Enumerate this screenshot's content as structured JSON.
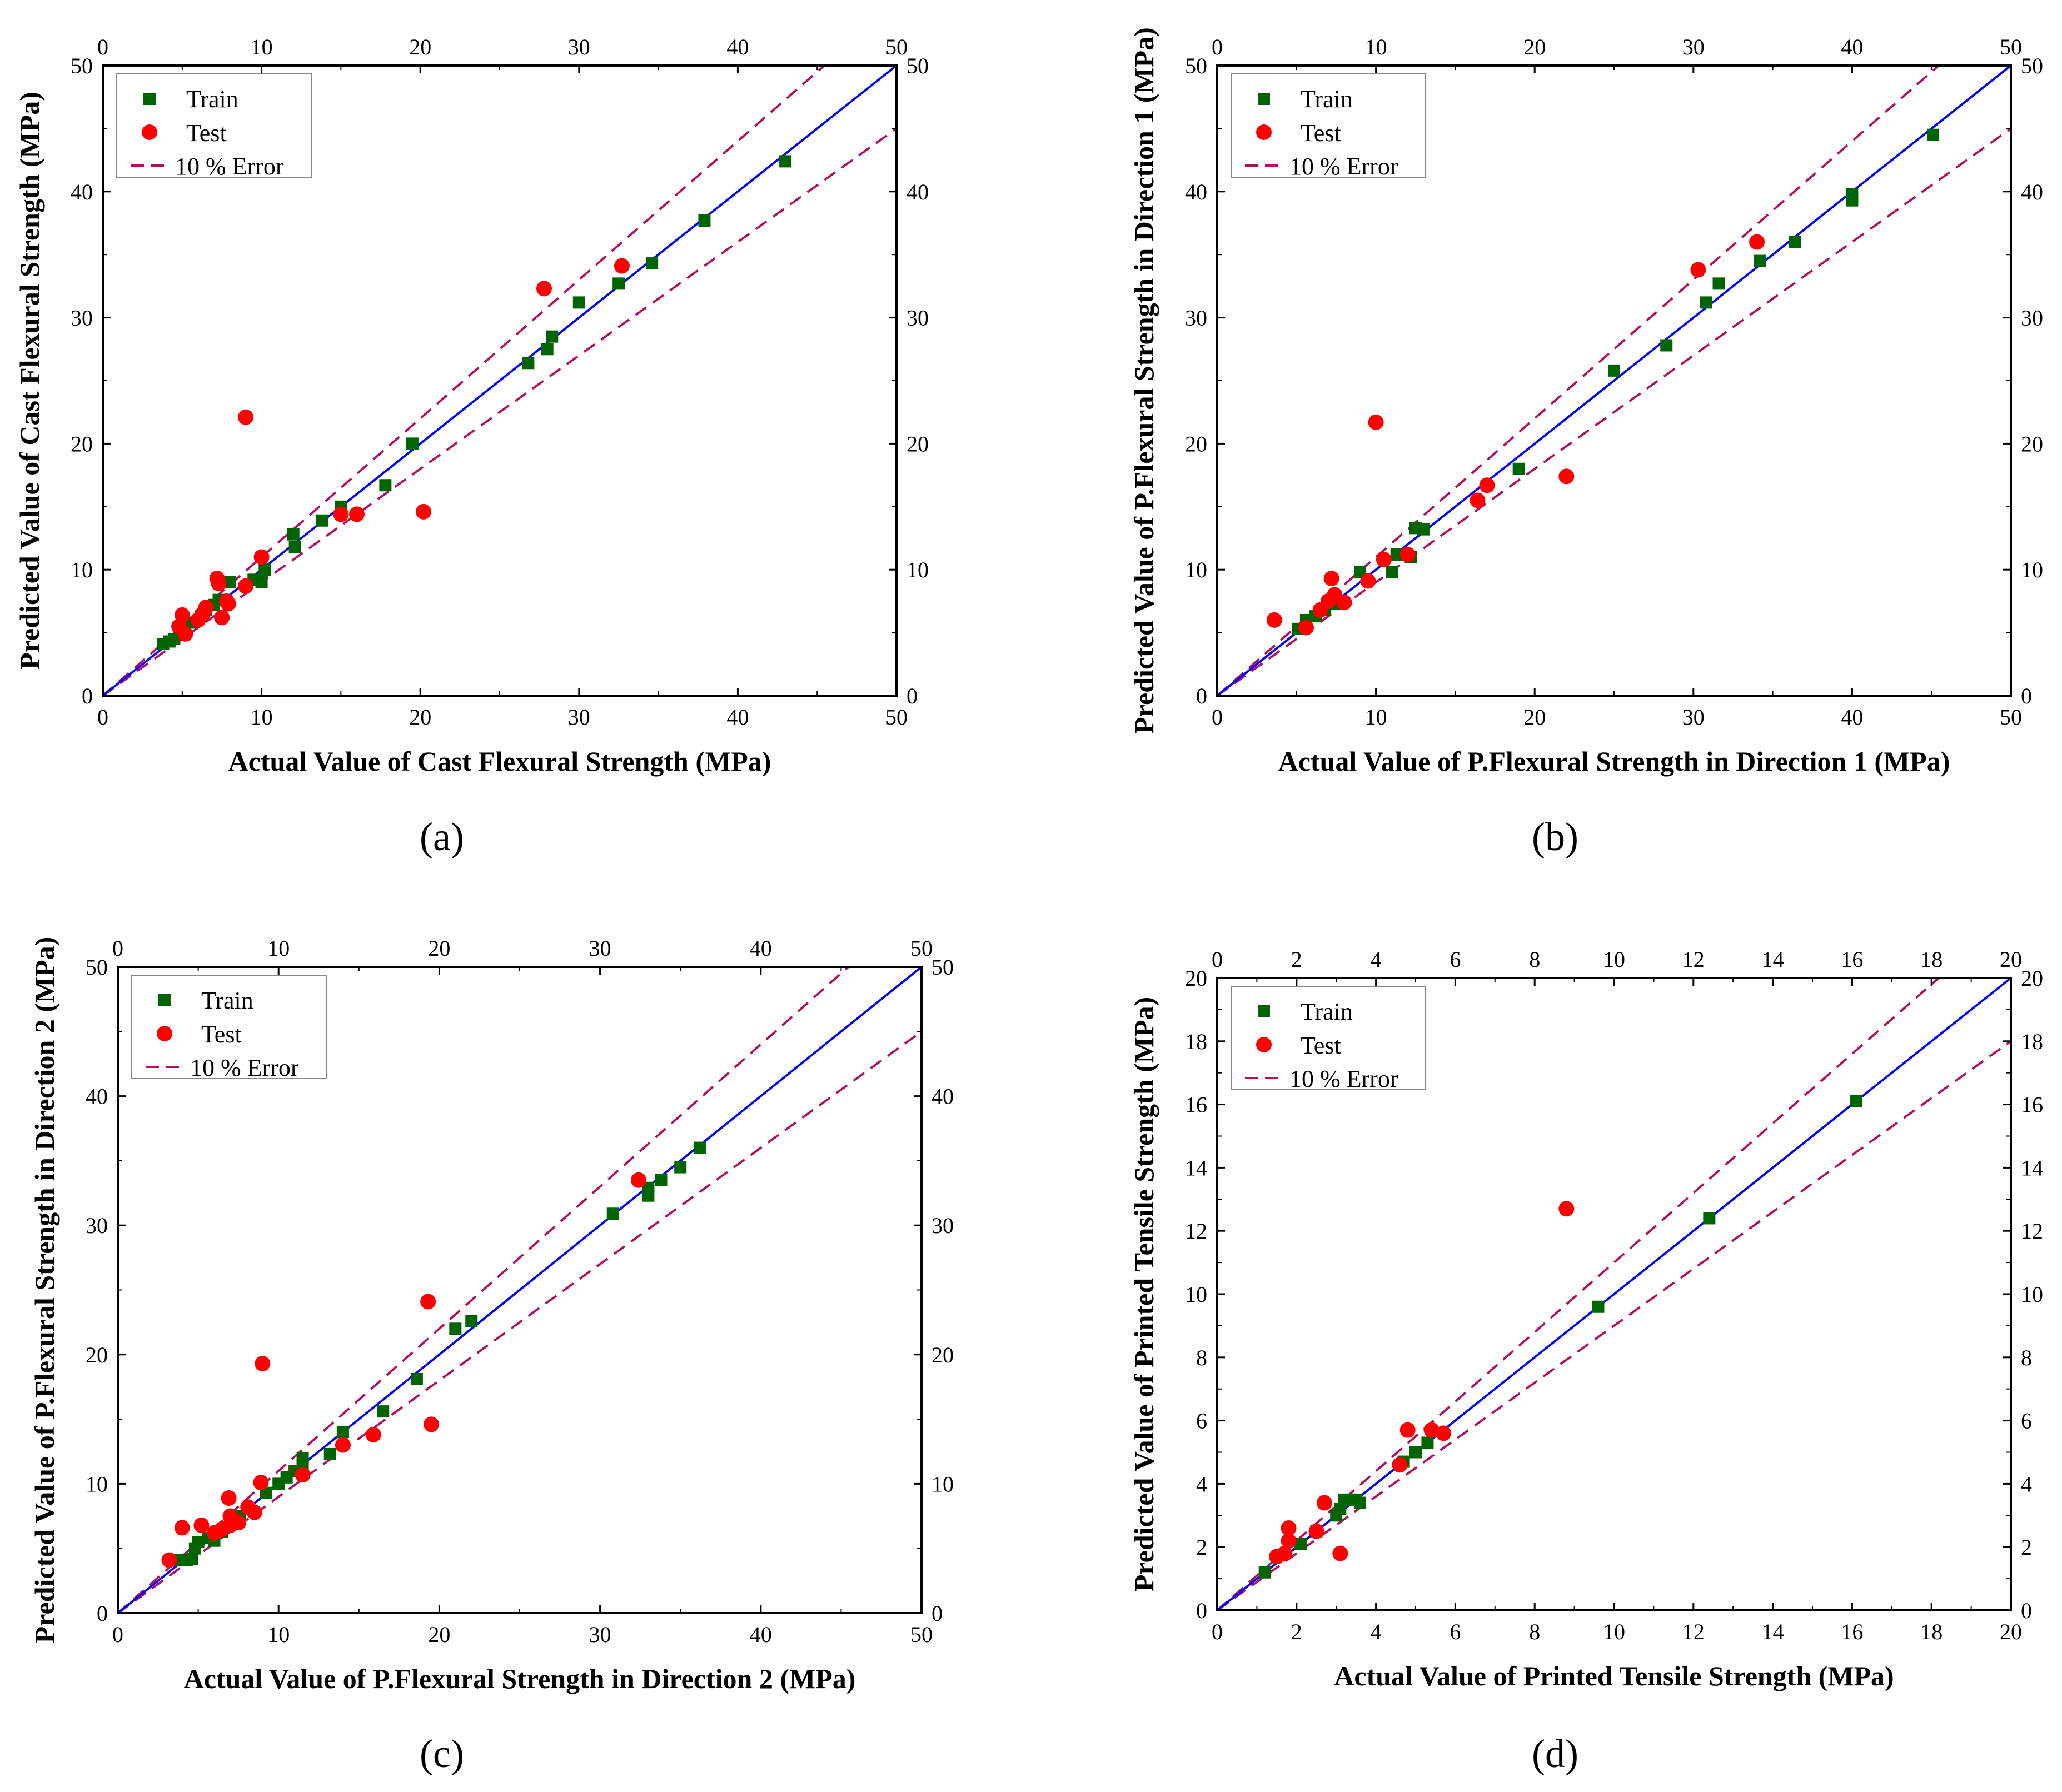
{
  "figure": {
    "legend_labels": {
      "train": "Train",
      "test": "Test",
      "error": "10 % Error"
    },
    "colors": {
      "train": "#006400",
      "test": "#ff0000",
      "ideal": "#0000ff",
      "error": "#b0105e",
      "axis": "#000000"
    }
  },
  "chart_data": [
    {
      "id": "a",
      "caption": "(a)",
      "type": "scatter",
      "xlabel": "Actual Value of Cast Flexural Strength (MPa)",
      "ylabel": "Predicted Value of Cast Flexural Strength (MPa)",
      "xlim": [
        0,
        50
      ],
      "ylim": [
        0,
        50
      ],
      "ticks": [
        "0",
        "10",
        "20",
        "30",
        "40",
        "50"
      ],
      "legend_position": "top-left",
      "train": [
        [
          3.8,
          4.1
        ],
        [
          4.2,
          4.3
        ],
        [
          4.5,
          4.5
        ],
        [
          5.5,
          5.8
        ],
        [
          6.2,
          6.3
        ],
        [
          6.5,
          6.8
        ],
        [
          7.0,
          7.2
        ],
        [
          7.3,
          7.6
        ],
        [
          8.0,
          9.0
        ],
        [
          9.5,
          9.2
        ],
        [
          10.0,
          9.0
        ],
        [
          10.2,
          10.0
        ],
        [
          12.0,
          12.8
        ],
        [
          12.1,
          11.8
        ],
        [
          13.8,
          13.9
        ],
        [
          15.0,
          15.0
        ],
        [
          17.8,
          16.7
        ],
        [
          19.5,
          20.0
        ],
        [
          26.8,
          26.4
        ],
        [
          28.0,
          27.5
        ],
        [
          28.3,
          28.5
        ],
        [
          30.0,
          31.2
        ],
        [
          32.5,
          32.7
        ],
        [
          34.6,
          34.3
        ],
        [
          37.9,
          37.7
        ],
        [
          43.0,
          42.4
        ]
      ],
      "test": [
        [
          4.8,
          5.5
        ],
        [
          5.0,
          6.4
        ],
        [
          5.2,
          4.9
        ],
        [
          6.0,
          6.0
        ],
        [
          6.3,
          6.5
        ],
        [
          6.5,
          7.0
        ],
        [
          7.2,
          9.3
        ],
        [
          7.3,
          8.9
        ],
        [
          7.5,
          6.2
        ],
        [
          7.8,
          7.5
        ],
        [
          7.9,
          7.3
        ],
        [
          9.0,
          22.1
        ],
        [
          9.0,
          8.7
        ],
        [
          10.0,
          11.0
        ],
        [
          15.0,
          14.4
        ],
        [
          16.0,
          14.4
        ],
        [
          20.2,
          14.6
        ],
        [
          27.8,
          32.3
        ],
        [
          32.7,
          34.1
        ]
      ]
    },
    {
      "id": "b",
      "caption": "(b)",
      "type": "scatter",
      "xlabel": "Actual Value of P.Flexural Strength in Direction 1 (MPa)",
      "ylabel": "Predicted Value of P.Flexural Strength in Direction 1 (MPa)",
      "xlim": [
        0,
        50
      ],
      "ylim": [
        0,
        50
      ],
      "ticks": [
        "0",
        "10",
        "20",
        "30",
        "40",
        "50"
      ],
      "legend_position": "top-left",
      "train": [
        [
          5.1,
          5.3
        ],
        [
          5.6,
          6.0
        ],
        [
          6.2,
          6.3
        ],
        [
          6.8,
          6.8
        ],
        [
          7.5,
          7.3
        ],
        [
          9.0,
          9.8
        ],
        [
          11.0,
          9.8
        ],
        [
          11.3,
          11.2
        ],
        [
          12.2,
          11.0
        ],
        [
          12.5,
          13.3
        ],
        [
          13.0,
          13.2
        ],
        [
          19.0,
          18.0
        ],
        [
          25.0,
          25.8
        ],
        [
          28.3,
          27.8
        ],
        [
          30.8,
          31.2
        ],
        [
          31.6,
          32.7
        ],
        [
          34.2,
          34.5
        ],
        [
          36.4,
          36.0
        ],
        [
          40.0,
          39.3
        ],
        [
          40.0,
          39.8
        ],
        [
          45.1,
          44.5
        ]
      ],
      "test": [
        [
          3.6,
          6.0
        ],
        [
          5.6,
          5.4
        ],
        [
          6.5,
          6.8
        ],
        [
          7.0,
          7.5
        ],
        [
          7.2,
          9.3
        ],
        [
          7.4,
          8.0
        ],
        [
          8.0,
          7.4
        ],
        [
          9.5,
          9.1
        ],
        [
          10.0,
          21.7
        ],
        [
          10.5,
          10.8
        ],
        [
          12.0,
          11.2
        ],
        [
          16.4,
          15.5
        ],
        [
          17.0,
          16.7
        ],
        [
          22.0,
          17.4
        ],
        [
          30.3,
          33.8
        ],
        [
          34.0,
          36.0
        ]
      ]
    },
    {
      "id": "c",
      "caption": "(c)",
      "type": "scatter",
      "xlabel": "Actual Value of P.Flexural Strength in Direction 2 (MPa)",
      "ylabel": "Predicted Value of P.Flexural Strength in Direction 2 (MPa)",
      "xlim": [
        0,
        50
      ],
      "ylim": [
        0,
        50
      ],
      "ticks": [
        "0",
        "10",
        "20",
        "30",
        "40",
        "50"
      ],
      "legend_position": "top-left",
      "train": [
        [
          3.8,
          4.1
        ],
        [
          4.3,
          4.1
        ],
        [
          4.6,
          4.2
        ],
        [
          4.8,
          5.0
        ],
        [
          5.0,
          5.5
        ],
        [
          5.6,
          5.8
        ],
        [
          6.0,
          5.6
        ],
        [
          6.5,
          6.3
        ],
        [
          7.6,
          7.5
        ],
        [
          9.2,
          9.3
        ],
        [
          10.0,
          10.0
        ],
        [
          10.5,
          10.5
        ],
        [
          11.0,
          11.0
        ],
        [
          11.5,
          12.0
        ],
        [
          11.5,
          11.5
        ],
        [
          13.2,
          12.3
        ],
        [
          14.0,
          14.0
        ],
        [
          16.5,
          15.6
        ],
        [
          18.6,
          18.1
        ],
        [
          21.0,
          22.0
        ],
        [
          22.0,
          22.6
        ],
        [
          30.8,
          30.9
        ],
        [
          33.0,
          32.3
        ],
        [
          33.0,
          32.9
        ],
        [
          33.8,
          33.5
        ],
        [
          35.0,
          34.5
        ],
        [
          36.2,
          36.0
        ]
      ],
      "test": [
        [
          3.2,
          4.1
        ],
        [
          4.0,
          6.6
        ],
        [
          5.2,
          6.8
        ],
        [
          6.0,
          6.2
        ],
        [
          6.5,
          6.5
        ],
        [
          6.9,
          8.9
        ],
        [
          7.0,
          7.5
        ],
        [
          7.0,
          6.8
        ],
        [
          7.5,
          7.0
        ],
        [
          8.1,
          8.2
        ],
        [
          8.5,
          7.8
        ],
        [
          8.9,
          10.1
        ],
        [
          9.0,
          19.3
        ],
        [
          11.5,
          10.7
        ],
        [
          14.0,
          13.0
        ],
        [
          15.9,
          13.8
        ],
        [
          19.3,
          24.1
        ],
        [
          19.5,
          14.6
        ],
        [
          32.4,
          33.5
        ]
      ]
    },
    {
      "id": "d",
      "caption": "(d)",
      "type": "scatter",
      "xlabel": "Actual Value of Printed Tensile Strength (MPa)",
      "ylabel": "Predicted Value of Printed Tensile Strength (MPa)",
      "xlim": [
        0,
        20
      ],
      "ylim": [
        0,
        20
      ],
      "ticks": [
        "0",
        "2",
        "4",
        "6",
        "8",
        "10",
        "12",
        "14",
        "16",
        "18",
        "20"
      ],
      "legend_position": "top-left",
      "train": [
        [
          1.2,
          1.2
        ],
        [
          2.1,
          2.1
        ],
        [
          2.5,
          2.5
        ],
        [
          3.0,
          3.0
        ],
        [
          3.1,
          3.2
        ],
        [
          3.2,
          3.5
        ],
        [
          3.5,
          3.5
        ],
        [
          3.6,
          3.4
        ],
        [
          4.7,
          4.7
        ],
        [
          5.0,
          5.0
        ],
        [
          5.3,
          5.3
        ],
        [
          9.6,
          9.6
        ],
        [
          12.4,
          12.4
        ],
        [
          16.1,
          16.1
        ]
      ],
      "test": [
        [
          1.5,
          1.7
        ],
        [
          1.7,
          1.8
        ],
        [
          1.8,
          2.6
        ],
        [
          1.8,
          2.2
        ],
        [
          2.5,
          2.5
        ],
        [
          2.7,
          3.4
        ],
        [
          3.1,
          1.8
        ],
        [
          4.6,
          4.6
        ],
        [
          4.8,
          5.7
        ],
        [
          5.4,
          5.7
        ],
        [
          5.7,
          5.6
        ],
        [
          8.8,
          12.7
        ]
      ]
    }
  ]
}
